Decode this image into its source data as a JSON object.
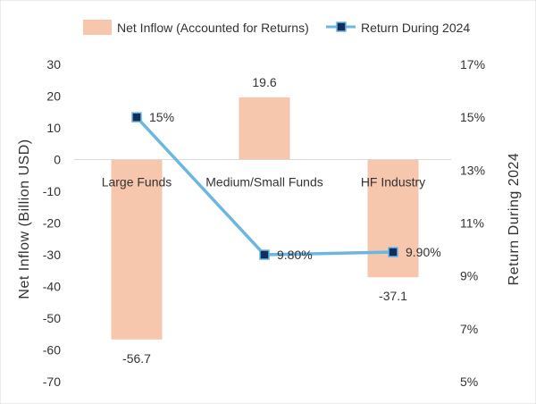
{
  "chart_data": {
    "type": "bar+line",
    "categories": [
      "Large Funds",
      "Medium/Small Funds",
      "HF Industry"
    ],
    "series": [
      {
        "name": "Net Inflow (Accounted for Returns)",
        "type": "bar",
        "axis": "left",
        "values": [
          -56.7,
          19.6,
          -37.1
        ],
        "labels": [
          "-56.7",
          "19.6",
          "-37.1"
        ],
        "color": "#F6C6AD"
      },
      {
        "name": "Return During 2024",
        "type": "line",
        "axis": "right",
        "values": [
          15.0,
          9.8,
          9.9
        ],
        "labels": [
          "15%",
          "9.80%",
          "9.90%"
        ],
        "line_color": "#6BB7E0",
        "marker_color": "#0F2F5E"
      }
    ],
    "y_left": {
      "label": "Net  Inflow (Billion USD)",
      "range": [
        -70,
        30
      ],
      "ticks": [
        "30",
        "20",
        "10",
        "0",
        "-10",
        "-20",
        "-30",
        "-40",
        "-50",
        "-60",
        "-70"
      ]
    },
    "y_right": {
      "label": "Return During 2024",
      "range": [
        5,
        17
      ],
      "ticks": [
        "17%",
        "15%",
        "13%",
        "11%",
        "9%",
        "7%",
        "5%"
      ]
    },
    "legend_position": "top",
    "grid": false
  }
}
